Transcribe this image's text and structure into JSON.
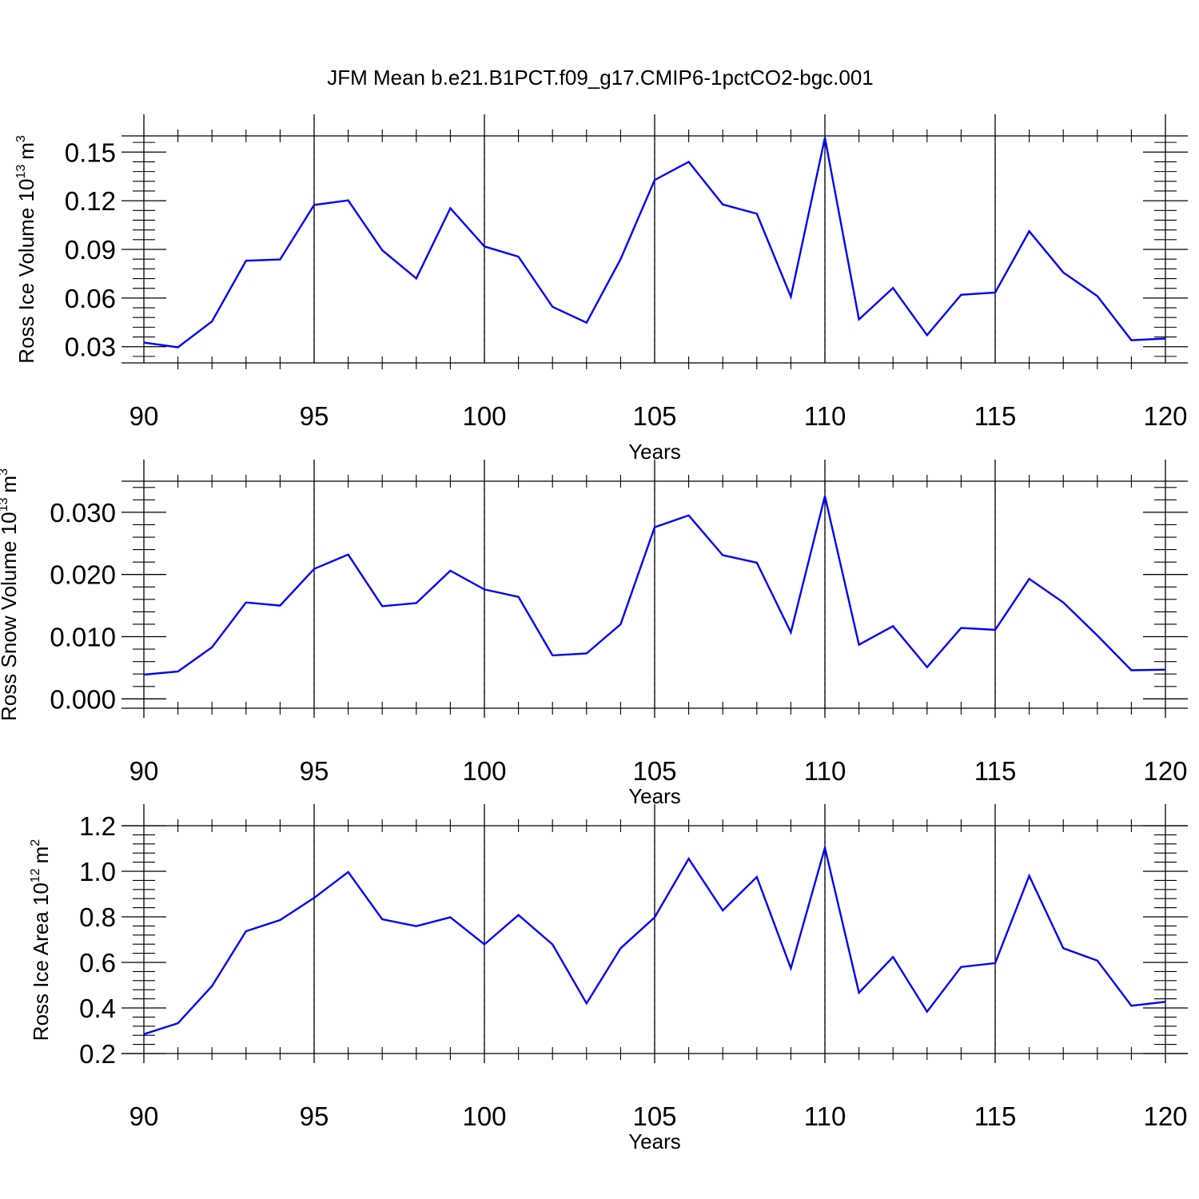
{
  "title": "JFM Mean b.e21.B1PCT.f09_g17.CMIP6-1pctCO2-bgc.001",
  "colors": {
    "line": "#0000ff",
    "axis": "#000000",
    "grid": "#999999"
  },
  "chart_data": [
    {
      "type": "line",
      "ylabel": "Ross Ice Volume 10",
      "ylabel_exp": "13",
      "ylabel_unit": "m",
      "ylabel_unit_exp": "3",
      "xlabel": "Years",
      "xlim": [
        90,
        120
      ],
      "ylim": [
        0.02,
        0.16
      ],
      "xticks": [
        90,
        95,
        100,
        105,
        110,
        115,
        120
      ],
      "xtick_labels": [
        "90",
        "95",
        "100",
        "105",
        "110",
        "115",
        "120"
      ],
      "yticks": [
        0.03,
        0.06,
        0.09,
        0.12,
        0.15
      ],
      "ytick_labels": [
        "0.03",
        "0.06",
        "0.09",
        "0.12",
        "0.15"
      ],
      "grid_x": [
        95,
        100,
        105,
        110,
        115
      ],
      "x": [
        90,
        91,
        92,
        93,
        94,
        95,
        96,
        97,
        98,
        99,
        100,
        101,
        102,
        103,
        104,
        105,
        106,
        107,
        108,
        109,
        110,
        111,
        112,
        113,
        114,
        115,
        116,
        117,
        118,
        119,
        120
      ],
      "values": [
        0.0325,
        0.0296,
        0.0456,
        0.083,
        0.0838,
        0.1174,
        0.1202,
        0.0895,
        0.0721,
        0.1154,
        0.0918,
        0.0855,
        0.0546,
        0.0448,
        0.084,
        0.1328,
        0.144,
        0.1177,
        0.112,
        0.0608,
        0.1588,
        0.0468,
        0.0662,
        0.0371,
        0.062,
        0.0634,
        0.1012,
        0.0758,
        0.0612,
        0.034,
        0.035
      ]
    },
    {
      "type": "line",
      "ylabel": "Ross Snow Volume 10",
      "ylabel_exp": "13",
      "ylabel_unit": "m",
      "ylabel_unit_exp": "3",
      "xlabel": "Years",
      "xlim": [
        90,
        120
      ],
      "ylim": [
        -0.0015,
        0.035
      ],
      "xticks": [
        90,
        95,
        100,
        105,
        110,
        115,
        120
      ],
      "xtick_labels": [
        "90",
        "95",
        "100",
        "105",
        "110",
        "115",
        "120"
      ],
      "yticks": [
        0.0,
        0.01,
        0.02,
        0.03
      ],
      "ytick_labels": [
        "0.000",
        "0.010",
        "0.020",
        "0.030"
      ],
      "grid_x": [
        95,
        100,
        105,
        110,
        115
      ],
      "x": [
        90,
        91,
        92,
        93,
        94,
        95,
        96,
        97,
        98,
        99,
        100,
        101,
        102,
        103,
        104,
        105,
        106,
        107,
        108,
        109,
        110,
        111,
        112,
        113,
        114,
        115,
        116,
        117,
        118,
        119,
        120
      ],
      "values": [
        0.0039,
        0.0044,
        0.0083,
        0.0155,
        0.015,
        0.0209,
        0.0232,
        0.0149,
        0.0154,
        0.0206,
        0.0176,
        0.0164,
        0.007,
        0.0073,
        0.012,
        0.0276,
        0.0295,
        0.0231,
        0.0219,
        0.0107,
        0.0326,
        0.0087,
        0.0117,
        0.0051,
        0.0114,
        0.0111,
        0.0193,
        0.0155,
        0.0102,
        0.0046,
        0.0047
      ]
    },
    {
      "type": "line",
      "ylabel": "Ross Ice Area 10",
      "ylabel_exp": "12",
      "ylabel_unit": "m",
      "ylabel_unit_exp": "2",
      "xlabel": "Years",
      "xlim": [
        90,
        120
      ],
      "ylim": [
        0.2,
        1.2
      ],
      "xticks": [
        90,
        95,
        100,
        105,
        110,
        115,
        120
      ],
      "xtick_labels": [
        "90",
        "95",
        "100",
        "105",
        "110",
        "115",
        "120"
      ],
      "yticks": [
        0.2,
        0.4,
        0.6,
        0.8,
        1.0,
        1.2
      ],
      "ytick_labels": [
        "0.2",
        "0.4",
        "0.6",
        "0.8",
        "1.0",
        "1.2"
      ],
      "grid_x": [
        95,
        100,
        105,
        110,
        115
      ],
      "x": [
        90,
        91,
        92,
        93,
        94,
        95,
        96,
        97,
        98,
        99,
        100,
        101,
        102,
        103,
        104,
        105,
        106,
        107,
        108,
        109,
        110,
        111,
        112,
        113,
        114,
        115,
        116,
        117,
        118,
        119,
        120
      ],
      "values": [
        0.285,
        0.333,
        0.496,
        0.737,
        0.786,
        0.883,
        0.997,
        0.789,
        0.759,
        0.798,
        0.679,
        0.808,
        0.679,
        0.42,
        0.662,
        0.798,
        1.055,
        0.828,
        0.975,
        0.574,
        1.103,
        0.467,
        0.624,
        0.384,
        0.58,
        0.597,
        0.98,
        0.662,
        0.608,
        0.41,
        0.427
      ]
    }
  ]
}
